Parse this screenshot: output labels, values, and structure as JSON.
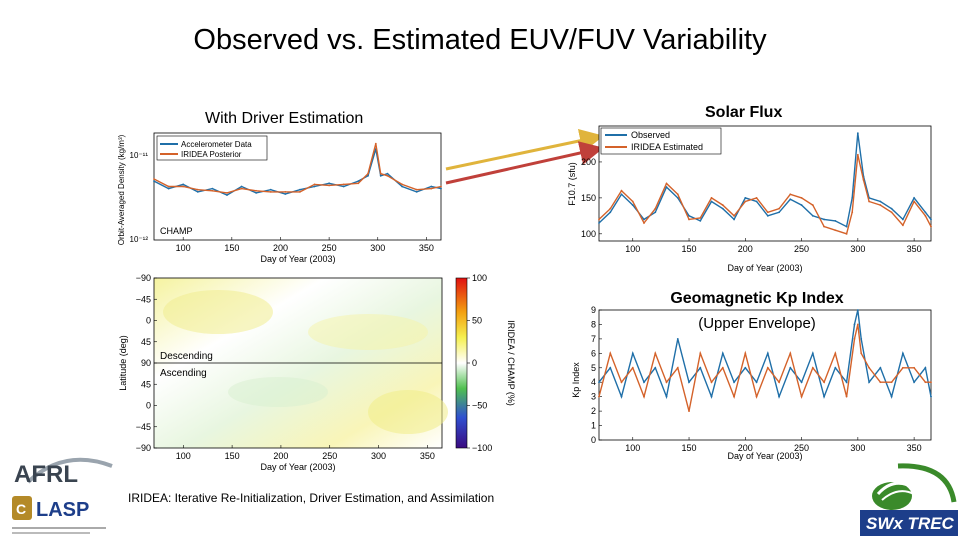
{
  "title": "Observed vs. Estimated EUV/FUV Variability",
  "subtitles": {
    "left": "With Driver Estimation",
    "solar_flux": "Solar Flux",
    "kp_line1": "Geomagnetic Kp Index",
    "kp_line2": "(Upper Envelope)"
  },
  "footnote": "IRIDEA: Iterative Re-Initialization, Driver Estimation, and Assimilation",
  "logos": {
    "afrl": "AFRL",
    "lasp": "LASP",
    "swx": "SWx TREC"
  },
  "colors": {
    "observed": "#1f6fa8",
    "estimated": "#d4622a",
    "champ": "#555555",
    "arrow_yellow": "#e0b43c",
    "arrow_red": "#c0403a"
  },
  "chart_data": [
    {
      "id": "density",
      "type": "line",
      "title": "",
      "xlabel": "Day of Year (2003)",
      "ylabel": "Orbit-Averaged Density (kg/m³)",
      "ytick_labels": [
        "10⁻¹¹",
        "10⁻¹²"
      ],
      "xlim": [
        70,
        365
      ],
      "ylim": [
        0,
        1
      ],
      "x_ticks": [
        100,
        150,
        200,
        250,
        300,
        350
      ],
      "legend": [
        "Accelerometer Data",
        "IRIDEA Posterior"
      ],
      "annotation": "CHAMP",
      "series": [
        {
          "name": "Accelerometer Data",
          "x": [
            70,
            85,
            100,
            115,
            130,
            145,
            160,
            175,
            190,
            205,
            220,
            235,
            250,
            265,
            280,
            290,
            298,
            303,
            310,
            325,
            340,
            355,
            365
          ],
          "values": [
            0.55,
            0.48,
            0.52,
            0.45,
            0.48,
            0.42,
            0.5,
            0.44,
            0.47,
            0.43,
            0.47,
            0.5,
            0.53,
            0.5,
            0.55,
            0.6,
            0.85,
            0.6,
            0.62,
            0.5,
            0.45,
            0.5,
            0.48
          ]
        },
        {
          "name": "IRIDEA Posterior",
          "x": [
            70,
            85,
            100,
            115,
            130,
            145,
            160,
            175,
            190,
            205,
            220,
            235,
            250,
            265,
            280,
            290,
            298,
            303,
            310,
            325,
            340,
            355,
            365
          ],
          "values": [
            0.57,
            0.5,
            0.5,
            0.47,
            0.46,
            0.44,
            0.48,
            0.46,
            0.45,
            0.45,
            0.45,
            0.52,
            0.51,
            0.52,
            0.53,
            0.62,
            0.9,
            0.62,
            0.6,
            0.52,
            0.47,
            0.48,
            0.5
          ]
        }
      ]
    },
    {
      "id": "heatmap",
      "type": "heatmap",
      "title": "",
      "xlabel": "Day of Year (2003)",
      "ylabel": "Latitude (deg)",
      "xlim": [
        70,
        365
      ],
      "x_ticks": [
        100,
        150,
        200,
        250,
        300,
        350
      ],
      "y_tick_labels": [
        "−90",
        "−45",
        "0",
        "45",
        "90",
        "45",
        "0",
        "−45",
        "−90"
      ],
      "region_labels": [
        "Descending",
        "Ascending"
      ],
      "colorbar": {
        "label": "IRIDEA / CHAMP (%)",
        "range": [
          -100,
          100
        ],
        "ticks": [
          100,
          50,
          0,
          -50,
          -100
        ],
        "tick_labels": [
          "100",
          "50",
          "0",
          "−50",
          "−100"
        ]
      }
    },
    {
      "id": "f107",
      "type": "line",
      "title": "",
      "xlabel": "Day of Year (2003)",
      "ylabel": "F10.7 (sfu)",
      "xlim": [
        70,
        365
      ],
      "ylim": [
        90,
        250
      ],
      "x_ticks": [
        100,
        150,
        200,
        250,
        300,
        350
      ],
      "y_ticks": [
        100,
        150,
        200
      ],
      "legend": [
        "Observed",
        "IRIDEA  Estimated"
      ],
      "series": [
        {
          "name": "Observed",
          "x": [
            70,
            80,
            90,
            100,
            110,
            120,
            130,
            140,
            150,
            160,
            170,
            180,
            190,
            200,
            210,
            220,
            230,
            240,
            250,
            260,
            270,
            280,
            290,
            295,
            300,
            305,
            310,
            320,
            330,
            340,
            350,
            360,
            365
          ],
          "values": [
            115,
            130,
            155,
            140,
            120,
            130,
            165,
            150,
            125,
            118,
            145,
            135,
            120,
            150,
            145,
            125,
            130,
            148,
            140,
            125,
            120,
            118,
            110,
            150,
            240,
            180,
            150,
            145,
            135,
            120,
            150,
            130,
            120
          ]
        },
        {
          "name": "IRIDEA  Estimated",
          "x": [
            70,
            80,
            90,
            100,
            110,
            120,
            130,
            140,
            150,
            160,
            170,
            180,
            190,
            200,
            210,
            220,
            230,
            240,
            250,
            260,
            270,
            280,
            290,
            295,
            300,
            305,
            310,
            320,
            330,
            340,
            350,
            360,
            365
          ],
          "values": [
            120,
            135,
            160,
            145,
            115,
            135,
            170,
            155,
            120,
            122,
            150,
            140,
            125,
            145,
            150,
            130,
            135,
            155,
            150,
            140,
            110,
            105,
            100,
            130,
            210,
            175,
            145,
            140,
            130,
            112,
            145,
            125,
            110
          ]
        }
      ]
    },
    {
      "id": "kp",
      "type": "line",
      "title": "",
      "xlabel": "Day of Year (2003)",
      "ylabel": "Kp Index",
      "xlim": [
        70,
        365
      ],
      "ylim": [
        0,
        9
      ],
      "x_ticks": [
        100,
        150,
        200,
        250,
        300,
        350
      ],
      "y_ticks": [
        0,
        1,
        2,
        3,
        4,
        5,
        6,
        7,
        8,
        9
      ],
      "series": [
        {
          "name": "Observed",
          "x": [
            70,
            80,
            90,
            100,
            110,
            120,
            130,
            140,
            150,
            160,
            170,
            180,
            190,
            200,
            210,
            220,
            230,
            240,
            250,
            260,
            270,
            280,
            290,
            297,
            300,
            303,
            310,
            320,
            330,
            340,
            350,
            360,
            365
          ],
          "values": [
            4,
            5,
            3,
            6,
            4,
            5,
            3,
            7,
            4,
            5,
            3,
            6,
            4,
            5,
            4,
            6,
            3,
            5,
            4,
            6,
            3,
            5,
            4,
            8,
            9,
            7,
            4,
            5,
            3,
            6,
            4,
            5,
            3
          ]
        },
        {
          "name": "IRIDEA  Estimated",
          "x": [
            70,
            80,
            90,
            100,
            110,
            120,
            130,
            140,
            150,
            160,
            170,
            180,
            190,
            200,
            210,
            220,
            230,
            240,
            250,
            260,
            270,
            280,
            290,
            297,
            300,
            303,
            310,
            320,
            330,
            340,
            350,
            360,
            365
          ],
          "values": [
            3,
            6,
            4,
            5,
            3,
            6,
            4,
            5,
            2,
            6,
            4,
            5,
            3,
            6,
            3,
            5,
            4,
            6,
            3,
            5,
            4,
            6,
            3,
            7,
            8,
            6,
            5,
            4,
            4,
            5,
            5,
            4,
            4
          ]
        }
      ]
    }
  ]
}
